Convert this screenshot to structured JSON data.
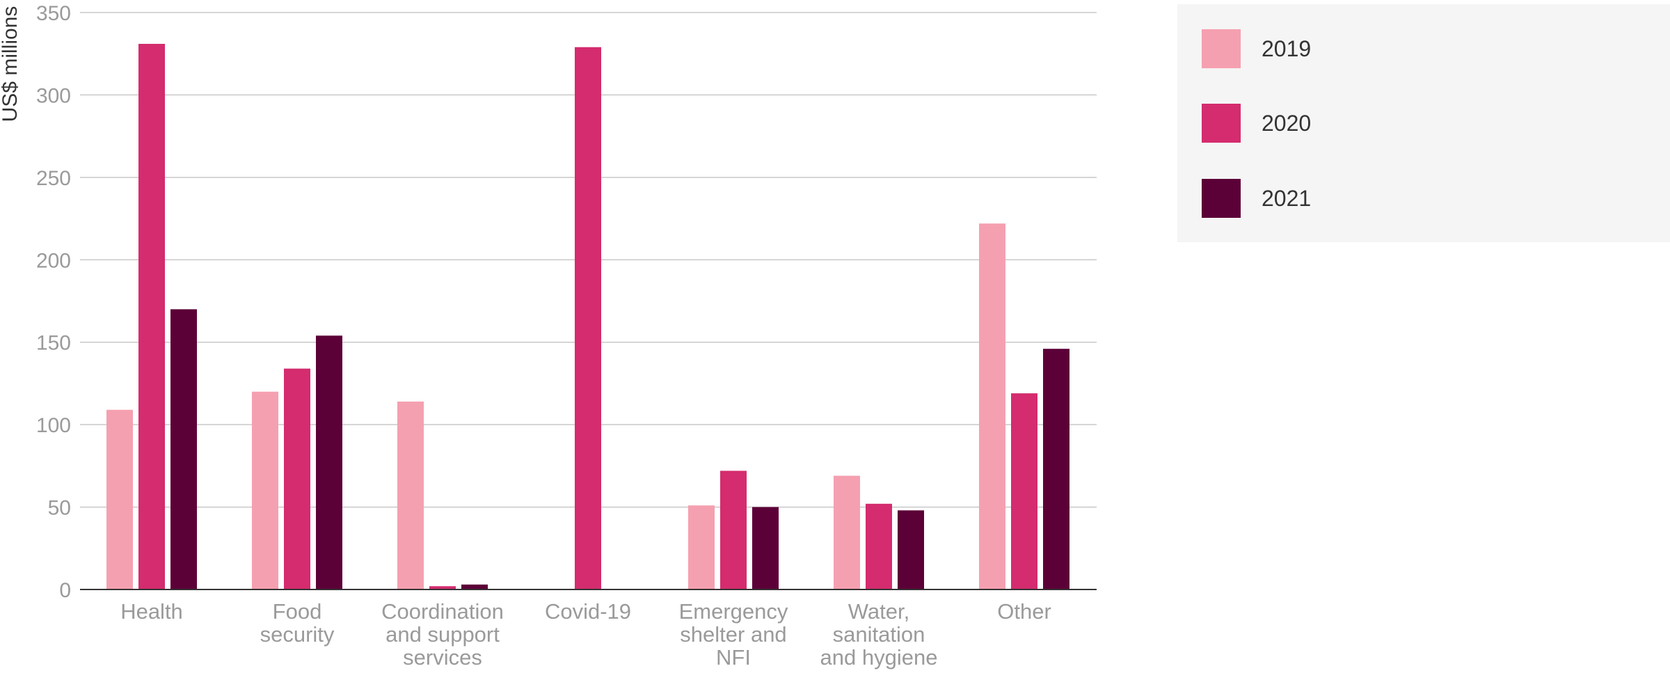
{
  "chart_data": {
    "type": "bar",
    "title": "",
    "xlabel": "",
    "ylabel": "US$ millions",
    "ylim": [
      0,
      350
    ],
    "yticks": [
      0,
      50,
      100,
      150,
      200,
      250,
      300,
      350
    ],
    "grid": true,
    "legend_position": "top-right",
    "categories": [
      [
        "Health"
      ],
      [
        "Food",
        "security"
      ],
      [
        "Coordination",
        "and support",
        "services"
      ],
      [
        "Covid-19"
      ],
      [
        "Emergency",
        "shelter and",
        "NFI"
      ],
      [
        "Water,",
        "sanitation",
        "and hygiene"
      ],
      [
        "Other"
      ]
    ],
    "series": [
      {
        "name": "2019",
        "color": "#f5a0b0",
        "values": [
          109,
          120,
          114,
          0,
          51,
          69,
          222
        ]
      },
      {
        "name": "2020",
        "color": "#d42c6e",
        "values": [
          331,
          134,
          2,
          329,
          72,
          52,
          119
        ]
      },
      {
        "name": "2021",
        "color": "#5c0038",
        "values": [
          170,
          154,
          3,
          0,
          50,
          48,
          146
        ]
      }
    ]
  }
}
